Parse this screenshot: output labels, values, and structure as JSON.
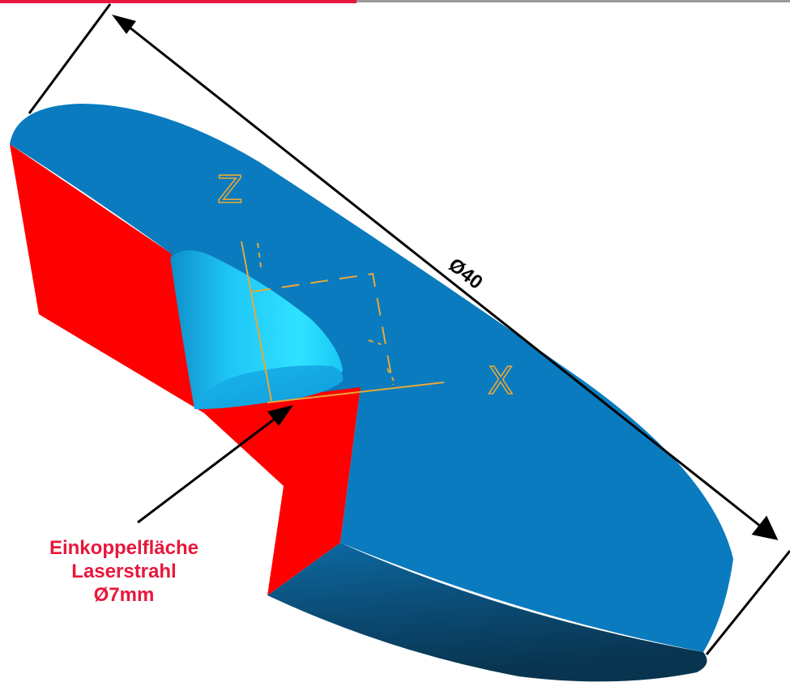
{
  "diagram": {
    "dimension_label": "Ø40",
    "axis_labels": {
      "z": "Z",
      "x": "X"
    },
    "callout_lines": [
      "Einkoppelfläche",
      "Laserstrahl",
      "Ø7mm"
    ]
  },
  "colors": {
    "top_bar_red": "#e8173c",
    "top_bar_gray": "#9a9a9a",
    "disk_top_face": "#0a7bbf",
    "disk_side_dark": "#0b4a73",
    "cut_face_red": "#ff0000",
    "cylinder_cyan": "#22d4ff",
    "axis_orange": "#e8a838",
    "callout_text": "#e8173c",
    "dimension_lines": "#000000"
  }
}
